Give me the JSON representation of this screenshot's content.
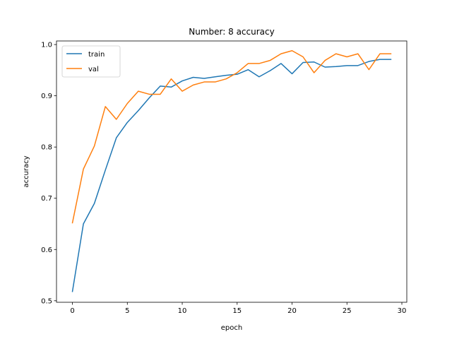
{
  "chart_data": {
    "type": "line",
    "title": "Number: 8 accuracy",
    "xlabel": "epoch",
    "ylabel": "accuracy",
    "xlim": [
      -1.45,
      30.45
    ],
    "ylim": [
      0.497,
      1.007
    ],
    "xticks": [
      0,
      5,
      10,
      15,
      20,
      25,
      30
    ],
    "yticks": [
      0.5,
      0.6,
      0.7,
      0.8,
      0.9,
      1.0
    ],
    "grid": false,
    "legend_position": "top-left",
    "x": [
      0,
      1,
      2,
      3,
      4,
      5,
      6,
      7,
      8,
      9,
      10,
      11,
      12,
      13,
      14,
      15,
      16,
      17,
      18,
      19,
      20,
      21,
      22,
      23,
      24,
      25,
      26,
      27,
      28,
      29
    ],
    "series": [
      {
        "name": "train",
        "color": "#1f77b4",
        "values": [
          0.518,
          0.65,
          0.69,
          0.755,
          0.818,
          0.848,
          0.871,
          0.896,
          0.919,
          0.917,
          0.929,
          0.936,
          0.934,
          0.937,
          0.94,
          0.942,
          0.951,
          0.937,
          0.949,
          0.963,
          0.943,
          0.965,
          0.966,
          0.956,
          0.957,
          0.959,
          0.959,
          0.967,
          0.971,
          0.971
        ]
      },
      {
        "name": "val",
        "color": "#ff7f0e",
        "values": [
          0.652,
          0.757,
          0.802,
          0.879,
          0.854,
          0.885,
          0.909,
          0.903,
          0.903,
          0.933,
          0.909,
          0.921,
          0.927,
          0.927,
          0.933,
          0.945,
          0.963,
          0.963,
          0.969,
          0.982,
          0.988,
          0.976,
          0.945,
          0.969,
          0.982,
          0.976,
          0.982,
          0.951,
          0.982,
          0.982
        ]
      }
    ]
  }
}
